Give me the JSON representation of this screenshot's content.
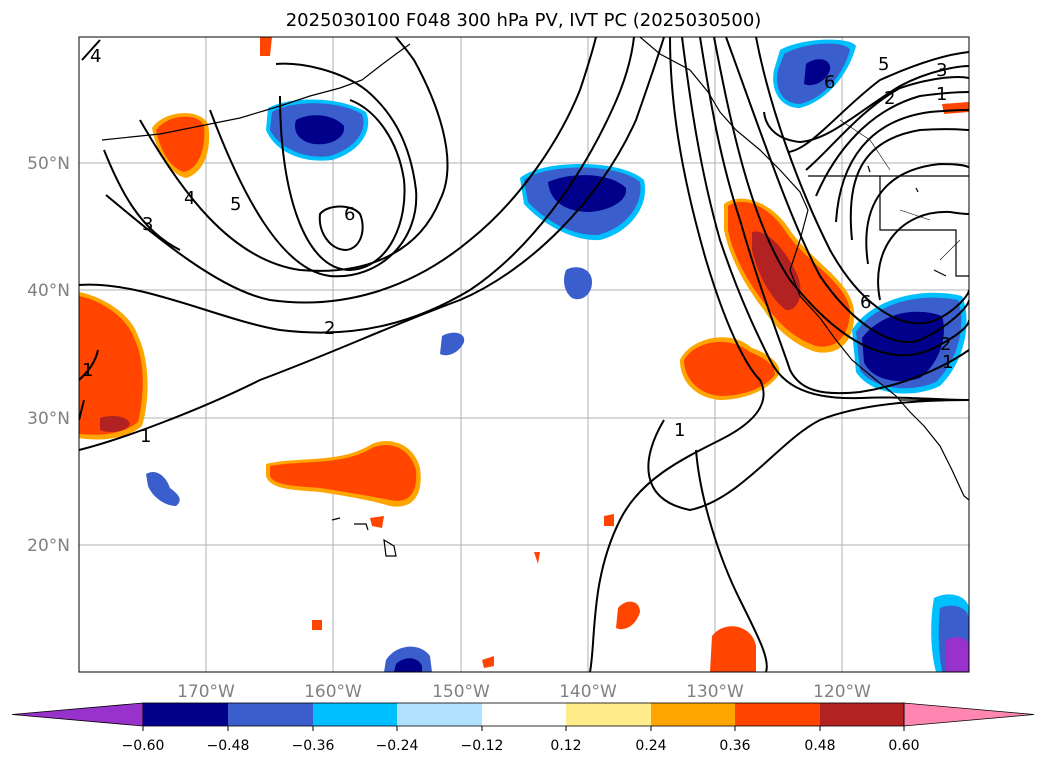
{
  "title": "2025030100 F048 300 hPa PV, IVT PC (2025030500)",
  "map": {
    "lat_labels": [
      "50°N",
      "40°N",
      "30°N",
      "20°N"
    ],
    "lon_labels": [
      "170°W",
      "160°W",
      "150°W",
      "140°W",
      "130°W",
      "120°W"
    ],
    "contour_labels": [
      "4",
      "5",
      "3",
      "6",
      "2",
      "1",
      "1",
      "1",
      "6",
      "5",
      "3",
      "2",
      "1",
      "6",
      "2",
      "1",
      "4"
    ]
  },
  "colorbar": {
    "ticks": [
      "−0.60",
      "−0.48",
      "−0.36",
      "−0.24",
      "−0.12",
      "0.12",
      "0.24",
      "0.36",
      "0.48",
      "0.60"
    ],
    "colors": [
      "#9932cc",
      "#00008b",
      "#3a5fcd",
      "#00bfff",
      "#b0e2ff",
      "#ffffff",
      "#ffec8b",
      "#ffa500",
      "#ff4500",
      "#b22222",
      "#ff86b0"
    ]
  }
}
